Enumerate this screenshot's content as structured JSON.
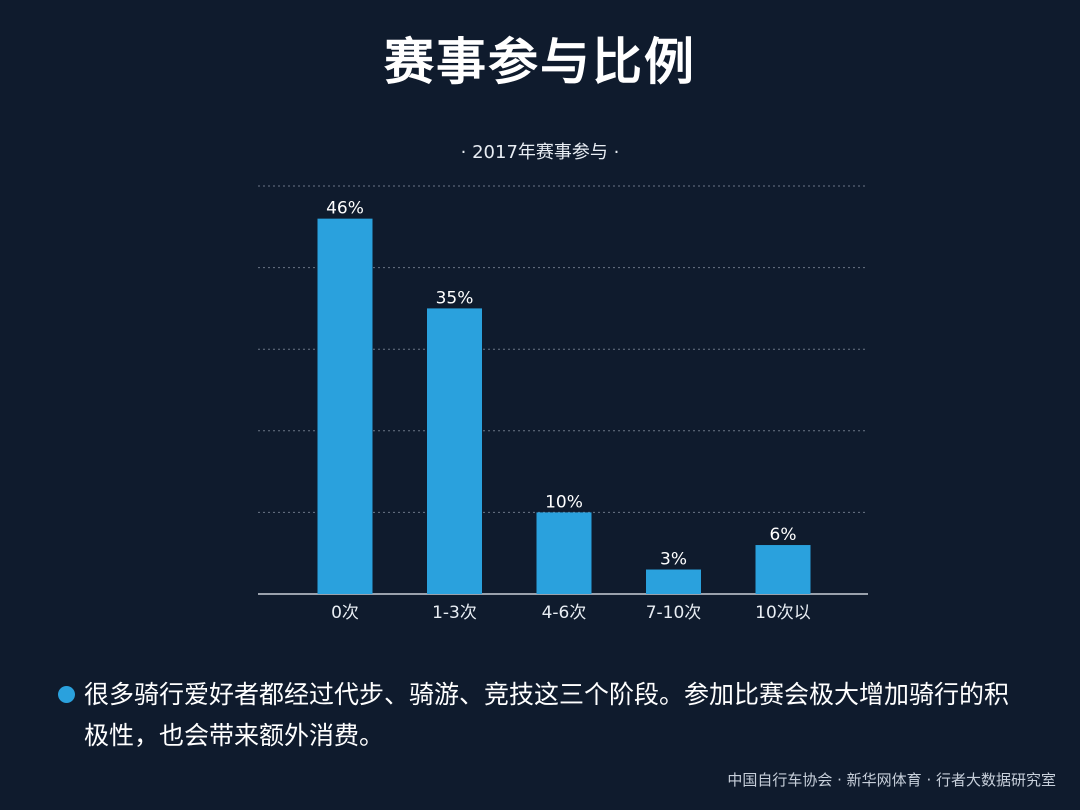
{
  "title": "赛事参与比例",
  "note": "很多骑行爱好者都经过代步、骑游、竞技这三个阶段。参加比赛会极大增加骑行的积极性，也会带来额外消费。",
  "source": "中国自行车协会 · 新华网体育 · 行者大数据研究室",
  "colors": {
    "background": "#0f1b2d",
    "bar": "#2aa1dd",
    "grid": "#6b7686",
    "bullet": "#2aa1dd"
  },
  "chart_data": {
    "type": "bar",
    "title": "· 2017年赛事参与 ·",
    "categories": [
      "0次",
      "1-3次",
      "4-6次",
      "7-10次",
      "10次以"
    ],
    "values": [
      46,
      35,
      10,
      3,
      6
    ],
    "value_labels": [
      "46%",
      "35%",
      "10%",
      "3%",
      "6%"
    ],
    "xlabel": "",
    "ylabel": "",
    "ylim": [
      0,
      50
    ],
    "grid": true,
    "legend": "none"
  }
}
